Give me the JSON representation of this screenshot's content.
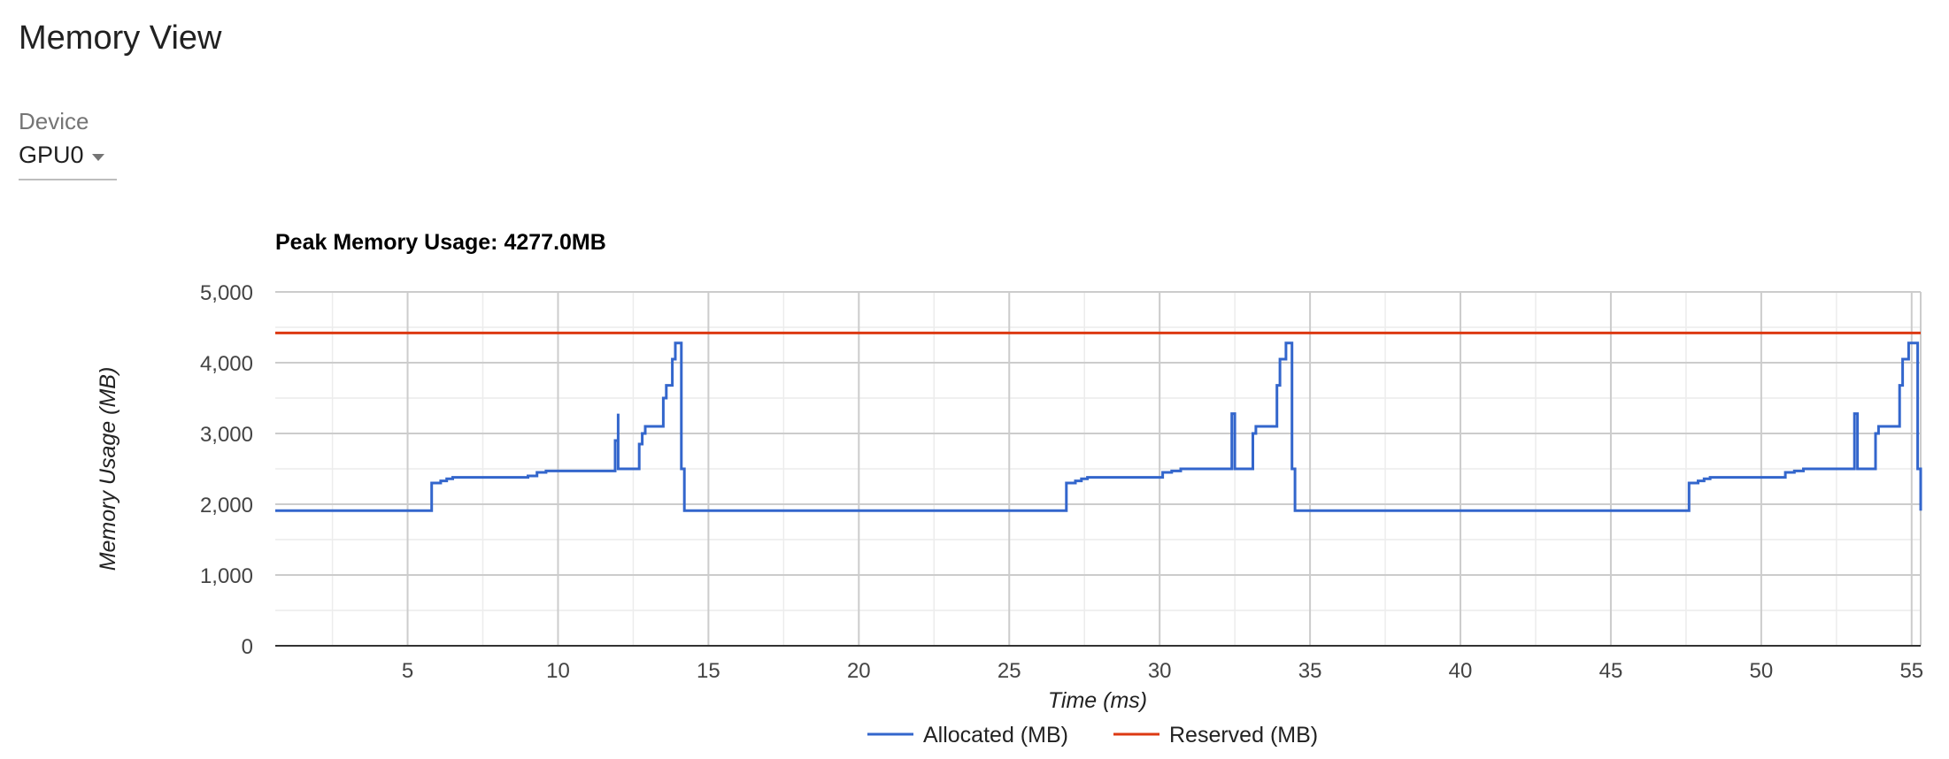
{
  "page": {
    "title": "Memory View"
  },
  "device": {
    "label": "Device",
    "selected": "GPU0"
  },
  "chart_data": {
    "type": "line",
    "title": "Peak Memory Usage: 4277.0MB",
    "xlabel": "Time (ms)",
    "ylabel": "Memory Usage (MB)",
    "xlim": [
      0.6,
      55.3
    ],
    "ylim": [
      0,
      5000
    ],
    "x_ticks": [
      5,
      10,
      15,
      20,
      25,
      30,
      35,
      40,
      45,
      50,
      55
    ],
    "y_ticks": [
      0,
      1000,
      2000,
      3000,
      4000,
      5000
    ],
    "y_tick_labels": [
      "0",
      "1,000",
      "2,000",
      "3,000",
      "4,000",
      "5,000"
    ],
    "grid": true,
    "legend_position": "bottom",
    "colors": {
      "allocated": "#3366cc",
      "reserved": "#dc3912"
    },
    "series": [
      {
        "name": "Allocated (MB)",
        "step": true,
        "x": [
          0.6,
          5.8,
          5.8,
          6.1,
          6.3,
          6.5,
          9.0,
          9.3,
          9.6,
          11.9,
          11.9,
          12.0,
          12.0,
          12.7,
          12.7,
          12.8,
          12.9,
          13.5,
          13.5,
          13.6,
          13.8,
          13.9,
          13.9,
          14.1,
          14.2,
          14.3,
          26.9,
          26.9,
          27.2,
          27.4,
          27.6,
          30.1,
          30.4,
          30.7,
          32.4,
          32.4,
          32.5,
          32.5,
          33.1,
          33.1,
          33.2,
          33.3,
          33.9,
          33.9,
          34.0,
          34.2,
          34.3,
          34.4,
          34.5,
          34.6,
          47.6,
          47.6,
          47.9,
          48.1,
          48.3,
          50.8,
          51.1,
          51.4,
          53.1,
          53.1,
          53.2,
          53.2,
          53.8,
          53.8,
          53.9,
          54.0,
          54.6,
          54.6,
          54.7,
          54.9,
          55.0,
          55.2,
          55.3
        ],
        "values": [
          1910,
          1910,
          2300,
          2330,
          2360,
          2380,
          2400,
          2450,
          2470,
          2500,
          2900,
          3280,
          2500,
          2500,
          2850,
          3000,
          3100,
          3100,
          3500,
          3680,
          4050,
          4277,
          4277,
          2500,
          1910,
          1910,
          1910,
          2300,
          2330,
          2360,
          2380,
          2450,
          2470,
          2500,
          2900,
          3280,
          2500,
          2500,
          2850,
          3000,
          3100,
          3100,
          3500,
          3680,
          4050,
          4277,
          4277,
          2500,
          1910,
          1910,
          1910,
          2300,
          2330,
          2360,
          2380,
          2450,
          2470,
          2500,
          2900,
          3280,
          2500,
          2500,
          2850,
          3000,
          3100,
          3100,
          3500,
          3680,
          4050,
          4277,
          4277,
          2500,
          1910
        ]
      },
      {
        "name": "Reserved (MB)",
        "x": [
          0.6,
          55.3
        ],
        "values": [
          4420,
          4420
        ]
      }
    ]
  }
}
